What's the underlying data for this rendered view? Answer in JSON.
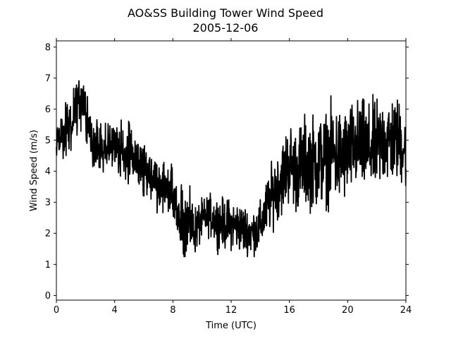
{
  "chart_data": {
    "type": "line",
    "title": "AO&SS Building Tower Wind Speed",
    "subtitle": "2005-12-06",
    "xlabel": "Time (UTC)",
    "ylabel": "Wind Speed (m/s)",
    "xlim": [
      0,
      24
    ],
    "ylim": [
      -0.15,
      8.2
    ],
    "xticks": [
      0,
      4,
      8,
      12,
      16,
      20,
      24
    ],
    "yticks": [
      0,
      1,
      2,
      3,
      4,
      5,
      6,
      7,
      8
    ],
    "grid": false,
    "line_color": "#000000",
    "series": [
      {
        "x": [
          0.0,
          0.5,
          1.0,
          1.5,
          2.0,
          2.5,
          3.0,
          3.5,
          4.0,
          4.5,
          5.0,
          5.5,
          6.0,
          6.5,
          7.0,
          7.5,
          8.0,
          8.5,
          9.0,
          9.5,
          10.0,
          10.5,
          11.0,
          11.5,
          12.0,
          12.5,
          13.0,
          13.5,
          14.0,
          14.5,
          15.0,
          15.5,
          16.0,
          16.5,
          17.0,
          17.5,
          18.0,
          18.5,
          19.0,
          19.5,
          20.0,
          20.5,
          21.0,
          21.5,
          22.0,
          22.5,
          23.0,
          23.5,
          24.0
        ],
        "y": [
          4.9,
          5.3,
          5.6,
          6.3,
          5.7,
          4.8,
          4.9,
          4.7,
          4.8,
          4.6,
          4.5,
          4.3,
          4.1,
          3.9,
          3.6,
          3.5,
          3.1,
          2.3,
          2.4,
          2.1,
          2.4,
          2.6,
          2.4,
          2.3,
          2.3,
          2.2,
          2.1,
          2.0,
          2.2,
          2.9,
          3.4,
          3.8,
          4.3,
          4.0,
          4.3,
          4.3,
          4.3,
          4.4,
          4.6,
          4.4,
          4.6,
          4.8,
          4.8,
          4.7,
          4.8,
          5.0,
          5.0,
          5.0,
          4.7
        ],
        "spread": [
          0.5,
          0.6,
          0.7,
          0.6,
          0.7,
          0.6,
          0.7,
          0.6,
          0.6,
          0.7,
          0.8,
          0.7,
          0.7,
          0.6,
          0.6,
          0.6,
          0.7,
          0.8,
          0.8,
          0.6,
          0.5,
          0.5,
          0.6,
          0.6,
          0.6,
          0.6,
          0.6,
          0.6,
          0.6,
          0.7,
          0.8,
          0.9,
          1.0,
          1.0,
          1.1,
          1.1,
          1.2,
          1.1,
          1.2,
          1.2,
          1.1,
          1.1,
          1.1,
          1.1,
          1.1,
          1.1,
          1.1,
          1.0,
          1.0
        ]
      }
    ]
  }
}
